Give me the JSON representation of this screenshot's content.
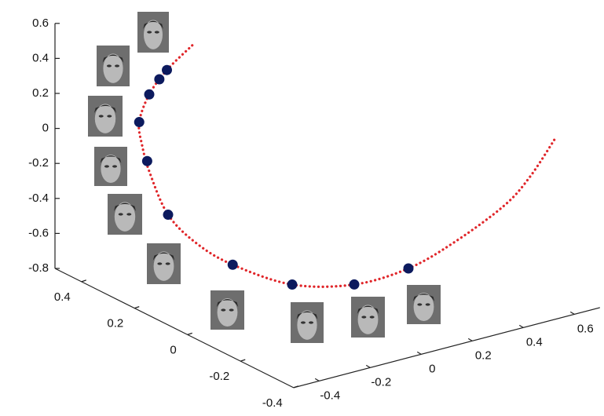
{
  "chart_data": {
    "type": "scatter3d",
    "xlim": [
      -0.4,
      0.5
    ],
    "ylim": [
      -0.5,
      0.7
    ],
    "zlim": [
      -0.8,
      0.6
    ],
    "xticks": [
      0.4,
      0.2,
      0,
      -0.2,
      -0.4
    ],
    "yticks": [
      -0.4,
      -0.2,
      0,
      0.2,
      0.4,
      0.6
    ],
    "zticks": [
      0.6,
      0.4,
      0.2,
      0,
      -0.2,
      -0.4,
      -0.6,
      -0.8
    ],
    "series": [
      {
        "mode": "line",
        "color": "#e0262a",
        "x": [
          0.3,
          0.28,
          0.26,
          0.24,
          0.22,
          0.2,
          0.16,
          0.12,
          0.08,
          0.0,
          -0.08,
          -0.14,
          -0.19,
          -0.24,
          -0.27,
          -0.3
        ],
        "y": [
          -0.17,
          -0.29,
          -0.38,
          -0.44,
          -0.45,
          -0.44,
          -0.41,
          -0.34,
          -0.24,
          -0.09,
          0.07,
          0.22,
          0.35,
          0.49,
          0.56,
          0.63
        ],
        "values": [
          0.5,
          0.42,
          0.33,
          0.21,
          0.1,
          -0.05,
          -0.27,
          -0.43,
          -0.56,
          -0.67,
          -0.67,
          -0.59,
          -0.45,
          -0.26,
          -0.1,
          0.12
        ]
      },
      {
        "mode": "markers",
        "color": "#0c1a5e",
        "x": [
          0.28,
          0.27,
          0.26,
          0.24,
          0.21,
          0.16,
          0.08,
          0.0,
          -0.08,
          -0.14
        ],
        "y": [
          -0.29,
          -0.33,
          -0.38,
          -0.44,
          -0.44,
          -0.41,
          -0.24,
          -0.09,
          0.07,
          0.22
        ],
        "values": [
          0.42,
          0.39,
          0.33,
          0.21,
          0.01,
          -0.27,
          -0.56,
          -0.67,
          -0.67,
          -0.59
        ]
      }
    ]
  }
}
